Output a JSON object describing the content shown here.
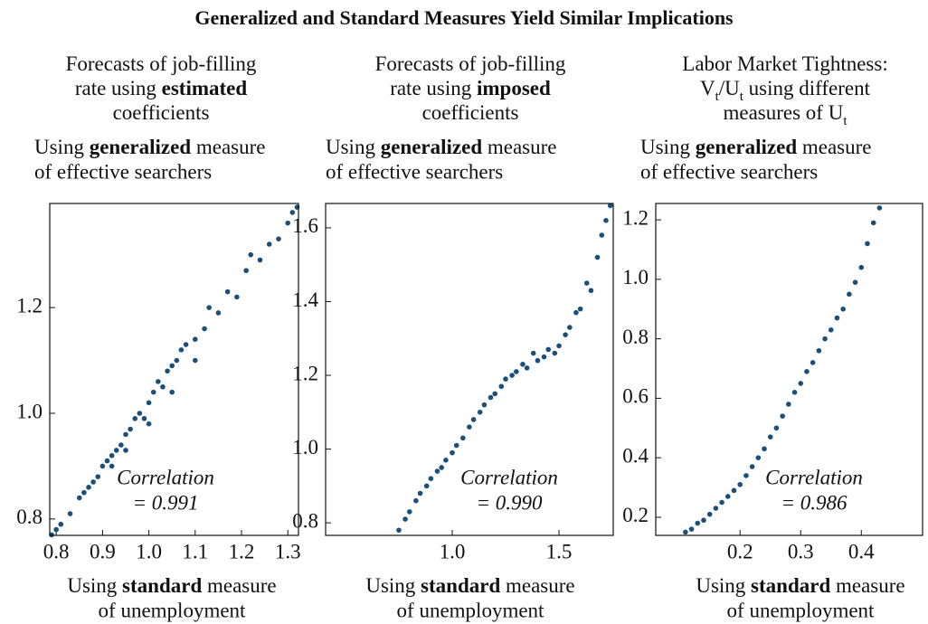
{
  "title": "Generalized and Standard Measures Yield Similar Implications",
  "chart_data": [
    {
      "type": "scatter",
      "title": [
        "Forecasts of job-filling",
        "rate using ",
        "estimated",
        "coefficients"
      ],
      "ylabel": [
        "Using ",
        "generalized",
        " measure",
        "of effective searchers"
      ],
      "xlabel": [
        "Using ",
        "standard",
        " measure",
        "of unemployment"
      ],
      "annotation": [
        "Correlation",
        "= 0.991"
      ],
      "color": "#1b4f7a",
      "xlim": [
        0.786,
        1.323
      ],
      "ylim": [
        0.769,
        1.397
      ],
      "xticks": [
        0.8,
        0.9,
        {
          "value": 1,
          "label": "1.0"
        },
        1.1,
        1.2,
        1.3
      ],
      "yticks": [
        0.8,
        {
          "value": 1,
          "label": "1.0"
        },
        1.2
      ],
      "x": [
        0.79,
        0.8,
        0.81,
        0.83,
        0.85,
        0.86,
        0.87,
        0.88,
        0.89,
        0.9,
        0.91,
        0.92,
        0.93,
        0.94,
        0.95,
        0.96,
        0.97,
        0.98,
        0.99,
        1.0,
        1.01,
        1.02,
        1.03,
        1.04,
        1.05,
        1.06,
        1.07,
        1.08,
        1.1,
        1.12,
        1.13,
        1.15,
        1.17,
        1.19,
        1.21,
        1.22,
        1.24,
        1.26,
        1.28,
        1.3,
        1.31,
        1.32,
        0.92,
        0.95,
        1.0,
        1.05,
        1.1
      ],
      "y": [
        0.77,
        0.78,
        0.79,
        0.81,
        0.84,
        0.85,
        0.86,
        0.87,
        0.88,
        0.9,
        0.91,
        0.92,
        0.93,
        0.94,
        0.96,
        0.97,
        0.99,
        1.0,
        0.99,
        1.02,
        1.04,
        1.06,
        1.05,
        1.08,
        1.09,
        1.1,
        1.12,
        1.13,
        1.14,
        1.16,
        1.2,
        1.19,
        1.23,
        1.22,
        1.27,
        1.3,
        1.29,
        1.32,
        1.33,
        1.36,
        1.38,
        1.39,
        0.9,
        0.93,
        0.98,
        1.04,
        1.1
      ]
    },
    {
      "type": "scatter",
      "title": [
        "Forecasts of job-filling",
        "rate using ",
        "imposed",
        "coefficients"
      ],
      "ylabel": [
        "Using ",
        "generalized",
        " measure",
        "of effective searchers"
      ],
      "xlabel": [
        "Using ",
        "standard",
        " measure",
        "of unemployment"
      ],
      "annotation": [
        "Correlation",
        "= 0.990"
      ],
      "color": "#1b4f7a",
      "xlim": [
        0.407,
        1.754
      ],
      "ylim": [
        0.766,
        1.666
      ],
      "xticks": [
        {
          "value": 1,
          "label": "1.0"
        },
        1.5
      ],
      "yticks": [
        0.8,
        {
          "value": 1,
          "label": "1.0"
        },
        1.2,
        1.4,
        1.6
      ],
      "x": [
        0.75,
        0.78,
        0.8,
        0.83,
        0.85,
        0.88,
        0.9,
        0.93,
        0.95,
        0.97,
        1.0,
        1.02,
        1.05,
        1.08,
        1.1,
        1.13,
        1.15,
        1.18,
        1.2,
        1.23,
        1.25,
        1.28,
        1.3,
        1.33,
        1.35,
        1.38,
        1.4,
        1.43,
        1.45,
        1.48,
        1.5,
        1.53,
        1.55,
        1.58,
        1.6,
        1.63,
        1.65,
        1.68,
        1.7,
        1.72,
        1.74
      ],
      "y": [
        0.78,
        0.81,
        0.83,
        0.86,
        0.88,
        0.9,
        0.92,
        0.94,
        0.95,
        0.97,
        0.99,
        1.01,
        1.03,
        1.06,
        1.08,
        1.1,
        1.12,
        1.14,
        1.15,
        1.17,
        1.19,
        1.2,
        1.21,
        1.23,
        1.22,
        1.26,
        1.24,
        1.25,
        1.27,
        1.26,
        1.28,
        1.31,
        1.33,
        1.37,
        1.38,
        1.45,
        1.43,
        1.52,
        1.58,
        1.62,
        1.66
      ]
    },
    {
      "type": "scatter",
      "title": [
        "Labor Market Tightness:",
        "V",
        "t",
        "/U",
        "t",
        " using different",
        "measures of U",
        "t"
      ],
      "ylabel": [
        "Using ",
        "generalized",
        " measure",
        "of effective searchers"
      ],
      "xlabel": [
        "Using ",
        "standard",
        " measure",
        "of unemployment"
      ],
      "annotation": [
        "Correlation",
        "= 0.986"
      ],
      "color": "#1b4f7a",
      "xlim": [
        0.061,
        0.501
      ],
      "ylim": [
        0.139,
        1.255
      ],
      "xticks": [
        0.2,
        0.3,
        0.4
      ],
      "yticks": [
        0.2,
        0.4,
        0.6,
        0.8,
        {
          "value": 1,
          "label": "1.0"
        },
        1.2
      ],
      "x": [
        0.11,
        0.12,
        0.13,
        0.14,
        0.15,
        0.16,
        0.17,
        0.18,
        0.19,
        0.2,
        0.21,
        0.22,
        0.23,
        0.24,
        0.25,
        0.26,
        0.27,
        0.28,
        0.29,
        0.3,
        0.31,
        0.32,
        0.33,
        0.34,
        0.35,
        0.36,
        0.37,
        0.38,
        0.39,
        0.4,
        0.41,
        0.42,
        0.43
      ],
      "y": [
        0.15,
        0.16,
        0.18,
        0.19,
        0.21,
        0.23,
        0.25,
        0.27,
        0.29,
        0.31,
        0.34,
        0.37,
        0.4,
        0.43,
        0.47,
        0.5,
        0.54,
        0.58,
        0.62,
        0.65,
        0.69,
        0.72,
        0.76,
        0.8,
        0.83,
        0.87,
        0.9,
        0.95,
        0.99,
        1.04,
        1.12,
        1.19,
        1.24
      ]
    }
  ]
}
